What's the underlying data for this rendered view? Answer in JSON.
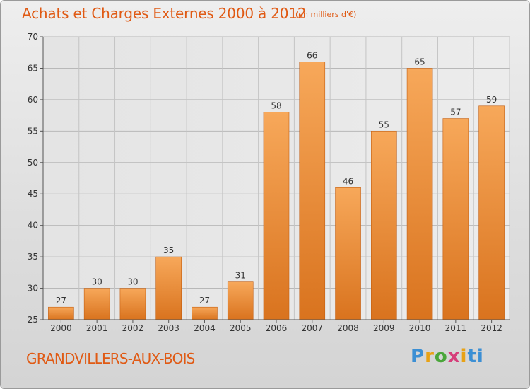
{
  "header": {
    "title": "Achats et Charges Externes 2000 à 2012",
    "unit": "(en milliers d'€)"
  },
  "footer": {
    "commune": "GRANDVILLERS-AUX-BOIS",
    "brand": "Proxiti"
  },
  "colors": {
    "accent": "#e05a14",
    "bar_top": "#f7a85a",
    "bar_bottom": "#d9731e",
    "bar_edge": "#c45f12"
  },
  "chart_data": {
    "type": "bar",
    "categories": [
      "2000",
      "2001",
      "2002",
      "2003",
      "2004",
      "2005",
      "2006",
      "2007",
      "2008",
      "2009",
      "2010",
      "2011",
      "2012"
    ],
    "values": [
      27,
      30,
      30,
      35,
      27,
      31,
      58,
      66,
      46,
      55,
      65,
      57,
      59
    ],
    "title": "Achats et Charges Externes 2000 à 2012",
    "ylim": [
      25,
      70
    ],
    "yticks": [
      25,
      30,
      35,
      40,
      45,
      50,
      55,
      60,
      65,
      70
    ],
    "grid": true
  }
}
